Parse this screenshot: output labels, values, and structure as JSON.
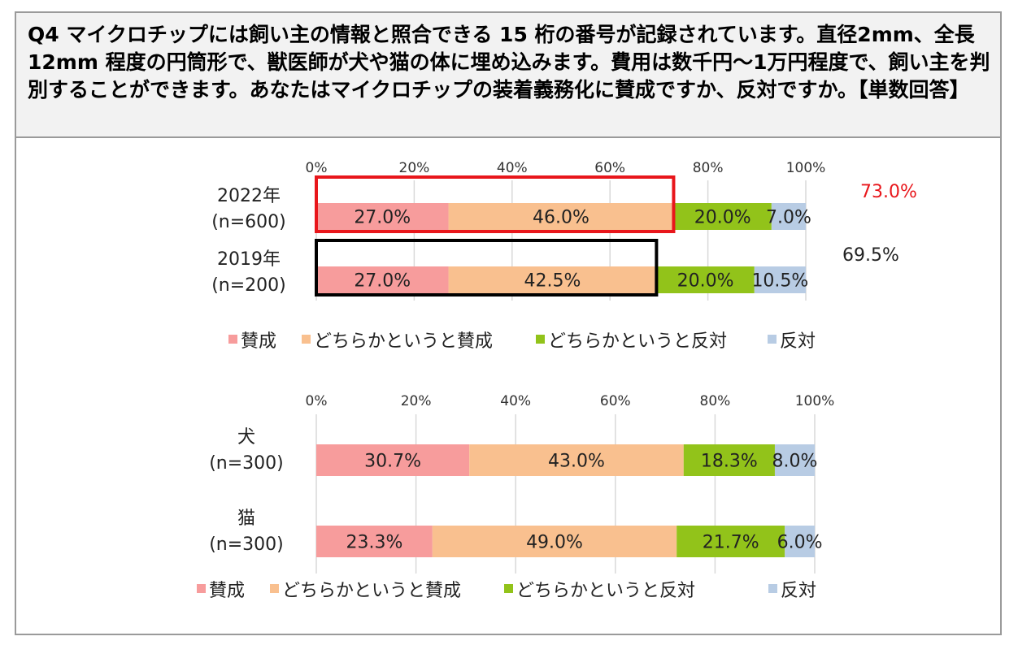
{
  "question": "Q4 マイクロチップには飼い主の情報と照合できる 15 桁の番号が記録されています。直径2mm、全長 12mm 程度の円筒形で、獣医師が犬や猫の体に埋め込みます。費用は数千円〜1万円程度で、飼い主を判別することができます。あなたはマイクロチップの装着義務化に賛成ですか、反対ですか。【単数回答】",
  "colors": {
    "agree": "#f79c9c",
    "somewhat_agree": "#f9c08f",
    "somewhat_disagree": "#92c31a",
    "disagree": "#b8cce4",
    "highlight_red": "#e8161b",
    "highlight_black": "#000000"
  },
  "chart_data": [
    {
      "type": "bar",
      "orientation": "horizontal-stacked",
      "categories": [
        {
          "label": "2022年",
          "sub": "(n=600)"
        },
        {
          "label": "2019年",
          "sub": "(n=200)"
        }
      ],
      "series": [
        {
          "name": "賛成",
          "values": [
            27.0,
            27.0
          ]
        },
        {
          "name": "どちらかというと賛成",
          "values": [
            46.0,
            42.5
          ]
        },
        {
          "name": "どちらかというと反対",
          "values": [
            20.0,
            20.0
          ]
        },
        {
          "name": "反対",
          "values": [
            7.0,
            10.5
          ]
        }
      ],
      "value_labels": [
        [
          "27.0%",
          "46.0%",
          "20.0%",
          "7.0%"
        ],
        [
          "27.0%",
          "42.5%",
          "20.0%",
          "10.5%"
        ]
      ],
      "totals": [
        {
          "value": 73.0,
          "label": "73.0%"
        },
        {
          "value": 69.5,
          "label": "69.5%"
        }
      ],
      "xlim": [
        0,
        100
      ],
      "ticks": [
        "0%",
        "20%",
        "40%",
        "60%",
        "80%",
        "100%"
      ],
      "grid": true,
      "legend_position": "bottom"
    },
    {
      "type": "bar",
      "orientation": "horizontal-stacked",
      "categories": [
        {
          "label": "犬",
          "sub": "(n=300)"
        },
        {
          "label": "猫",
          "sub": "(n=300)"
        }
      ],
      "series": [
        {
          "name": "賛成",
          "values": [
            30.7,
            23.3
          ]
        },
        {
          "name": "どちらかというと賛成",
          "values": [
            43.0,
            49.0
          ]
        },
        {
          "name": "どちらかというと反対",
          "values": [
            18.3,
            21.7
          ]
        },
        {
          "name": "反対",
          "values": [
            8.0,
            6.0
          ]
        }
      ],
      "value_labels": [
        [
          "30.7%",
          "43.0%",
          "18.3%",
          "8.0%"
        ],
        [
          "23.3%",
          "49.0%",
          "21.7%",
          "6.0%"
        ]
      ],
      "xlim": [
        0,
        100
      ],
      "ticks": [
        "0%",
        "20%",
        "40%",
        "60%",
        "80%",
        "100%"
      ],
      "grid": true,
      "legend_position": "bottom"
    }
  ]
}
